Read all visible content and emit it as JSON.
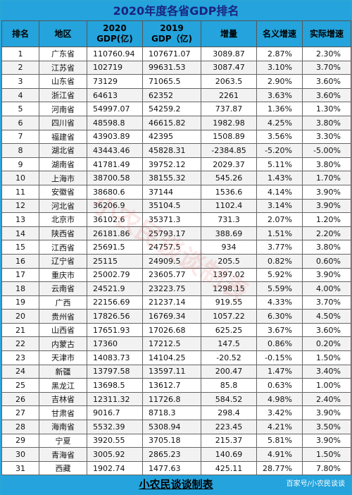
{
  "title": "2020年度各省GDP排名",
  "headers": {
    "rank": "排名",
    "region": "地区",
    "gdp2020_line1": "2020",
    "gdp2020_line2": "GDP(亿)",
    "gdp2019_line1": "2019",
    "gdp2019_line2": "GDP（亿)",
    "increase": "增量",
    "nominal": "名义增速",
    "real": "实际增速"
  },
  "rows": [
    {
      "rank": "1",
      "region": "广东省",
      "gdp2020": "110760.94",
      "gdp2019": "107671.07",
      "increase": "3089.87",
      "nominal": "2.87%",
      "real": "2.30%"
    },
    {
      "rank": "2",
      "region": "江苏省",
      "gdp2020": "102719",
      "gdp2019": "99631.53",
      "increase": "3087.47",
      "nominal": "3.10%",
      "real": "3.70%"
    },
    {
      "rank": "3",
      "region": "山东省",
      "gdp2020": "73129",
      "gdp2019": "71065.5",
      "increase": "2063.5",
      "nominal": "2.90%",
      "real": "3.60%"
    },
    {
      "rank": "4",
      "region": "浙江省",
      "gdp2020": "64613",
      "gdp2019": "62352",
      "increase": "2261",
      "nominal": "3.63%",
      "real": "3.60%"
    },
    {
      "rank": "5",
      "region": "河南省",
      "gdp2020": "54997.07",
      "gdp2019": "54259.2",
      "increase": "737.87",
      "nominal": "1.36%",
      "real": "1.30%"
    },
    {
      "rank": "6",
      "region": "四川省",
      "gdp2020": "48598.8",
      "gdp2019": "46615.82",
      "increase": "1982.98",
      "nominal": "4.25%",
      "real": "3.80%"
    },
    {
      "rank": "7",
      "region": "福建省",
      "gdp2020": "43903.89",
      "gdp2019": "42395",
      "increase": "1508.89",
      "nominal": "3.56%",
      "real": "3.30%"
    },
    {
      "rank": "8",
      "region": "湖北省",
      "gdp2020": "43443.46",
      "gdp2019": "45828.31",
      "increase": "-2384.85",
      "nominal": "-5.20%",
      "real": "-5.00%"
    },
    {
      "rank": "9",
      "region": "湖南省",
      "gdp2020": "41781.49",
      "gdp2019": "39752.12",
      "increase": "2029.37",
      "nominal": "5.11%",
      "real": "3.80%"
    },
    {
      "rank": "10",
      "region": "上海市",
      "gdp2020": "38700.58",
      "gdp2019": "38155.32",
      "increase": "545.26",
      "nominal": "1.43%",
      "real": "1.70%"
    },
    {
      "rank": "11",
      "region": "安徽省",
      "gdp2020": "38680.6",
      "gdp2019": "37144",
      "increase": "1536.6",
      "nominal": "4.14%",
      "real": "3.90%"
    },
    {
      "rank": "12",
      "region": "河北省",
      "gdp2020": "36206.9",
      "gdp2019": "35104.5",
      "increase": "1102.4",
      "nominal": "3.14%",
      "real": "3.90%"
    },
    {
      "rank": "13",
      "region": "北京市",
      "gdp2020": "36102.6",
      "gdp2019": "35371.3",
      "increase": "731.3",
      "nominal": "2.07%",
      "real": "1.20%"
    },
    {
      "rank": "14",
      "region": "陕西省",
      "gdp2020": "26181.86",
      "gdp2019": "25793.17",
      "increase": "388.69",
      "nominal": "1.51%",
      "real": "2.20%"
    },
    {
      "rank": "15",
      "region": "江西省",
      "gdp2020": "25691.5",
      "gdp2019": "24757.5",
      "increase": "934",
      "nominal": "3.77%",
      "real": "3.80%"
    },
    {
      "rank": "16",
      "region": "辽宁省",
      "gdp2020": "25115",
      "gdp2019": "24909.5",
      "increase": "205.5",
      "nominal": "0.82%",
      "real": "0.60%"
    },
    {
      "rank": "17",
      "region": "重庆市",
      "gdp2020": "25002.79",
      "gdp2019": "23605.77",
      "increase": "1397.02",
      "nominal": "5.92%",
      "real": "3.90%"
    },
    {
      "rank": "18",
      "region": "云南省",
      "gdp2020": "24521.9",
      "gdp2019": "23223.75",
      "increase": "1298.15",
      "nominal": "5.59%",
      "real": "4.00%"
    },
    {
      "rank": "19",
      "region": "广西",
      "gdp2020": "22156.69",
      "gdp2019": "21237.14",
      "increase": "919.55",
      "nominal": "4.33%",
      "real": "3.70%"
    },
    {
      "rank": "20",
      "region": "贵州省",
      "gdp2020": "17826.56",
      "gdp2019": "16769.34",
      "increase": "1057.22",
      "nominal": "6.30%",
      "real": "4.50%"
    },
    {
      "rank": "21",
      "region": "山西省",
      "gdp2020": "17651.93",
      "gdp2019": "17026.68",
      "increase": "625.25",
      "nominal": "3.67%",
      "real": "3.60%"
    },
    {
      "rank": "22",
      "region": "内蒙古",
      "gdp2020": "17360",
      "gdp2019": "17212.5",
      "increase": "147.5",
      "nominal": "0.86%",
      "real": "0.20%"
    },
    {
      "rank": "23",
      "region": "天津市",
      "gdp2020": "14083.73",
      "gdp2019": "14104.25",
      "increase": "-20.52",
      "nominal": "-0.15%",
      "real": "1.50%"
    },
    {
      "rank": "24",
      "region": "新疆",
      "gdp2020": "13797.58",
      "gdp2019": "13597.11",
      "increase": "200.47",
      "nominal": "1.47%",
      "real": "3.40%"
    },
    {
      "rank": "25",
      "region": "黑龙江",
      "gdp2020": "13698.5",
      "gdp2019": "13612.7",
      "increase": "85.8",
      "nominal": "0.63%",
      "real": "1.00%"
    },
    {
      "rank": "26",
      "region": "吉林省",
      "gdp2020": "12311.32",
      "gdp2019": "11726.8",
      "increase": "584.52",
      "nominal": "4.98%",
      "real": "2.40%"
    },
    {
      "rank": "27",
      "region": "甘肃省",
      "gdp2020": "9016.7",
      "gdp2019": "8718.3",
      "increase": "298.4",
      "nominal": "3.42%",
      "real": "3.90%"
    },
    {
      "rank": "28",
      "region": "海南省",
      "gdp2020": "5532.39",
      "gdp2019": "5308.94",
      "increase": "223.45",
      "nominal": "4.21%",
      "real": "3.50%"
    },
    {
      "rank": "29",
      "region": "宁夏",
      "gdp2020": "3920.55",
      "gdp2019": "3705.18",
      "increase": "215.37",
      "nominal": "5.81%",
      "real": "3.90%"
    },
    {
      "rank": "30",
      "region": "青海省",
      "gdp2020": "3005.92",
      "gdp2019": "2865.23",
      "increase": "140.69",
      "nominal": "4.91%",
      "real": "1.50%"
    },
    {
      "rank": "31",
      "region": "西藏",
      "gdp2020": "1902.74",
      "gdp2019": "1477.63",
      "increase": "425.11",
      "nominal": "28.77%",
      "real": "7.80%"
    }
  ],
  "footer": {
    "main": "小农民谈谈制表",
    "credit": "百家号/小农民谈谈"
  },
  "watermark": "小农民谈谈制表",
  "colors": {
    "header_bg": "#24a3dc",
    "title_text": "#1a237e",
    "border": "#2aa5d8"
  }
}
